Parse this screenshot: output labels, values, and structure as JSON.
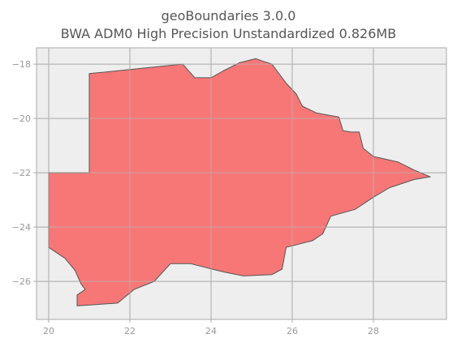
{
  "title_line1": "geoBoundaries 3.0.0",
  "title_line2": "BWA ADM0 High Precision Unstandardized 0.826MB",
  "chart_data": {
    "type": "map",
    "x_ticks": [
      "20",
      "22",
      "24",
      "26",
      "28"
    ],
    "y_ticks": [
      "−18",
      "−20",
      "−22",
      "−24",
      "−26"
    ],
    "x_values": [
      20,
      22,
      24,
      26,
      28
    ],
    "y_values": [
      -18,
      -20,
      -22,
      -24,
      -26
    ],
    "xlim": [
      19.7,
      29.8
    ],
    "ylim": [
      -27.4,
      -17.4
    ],
    "grid": true,
    "fill_color": "#f77777",
    "edge_color": "#555555",
    "background": "#eeeeee",
    "outline": [
      [
        21.0,
        -18.35
      ],
      [
        23.3,
        -18.0
      ],
      [
        23.6,
        -18.5
      ],
      [
        24.0,
        -18.5
      ],
      [
        24.3,
        -18.25
      ],
      [
        24.7,
        -17.95
      ],
      [
        25.1,
        -17.8
      ],
      [
        25.3,
        -17.9
      ],
      [
        25.5,
        -18.0
      ],
      [
        25.7,
        -18.4
      ],
      [
        25.85,
        -18.7
      ],
      [
        26.1,
        -19.1
      ],
      [
        26.25,
        -19.55
      ],
      [
        26.6,
        -19.8
      ],
      [
        27.15,
        -19.95
      ],
      [
        27.25,
        -20.45
      ],
      [
        27.45,
        -20.5
      ],
      [
        27.65,
        -20.5
      ],
      [
        27.75,
        -21.1
      ],
      [
        28.0,
        -21.4
      ],
      [
        28.6,
        -21.6
      ],
      [
        29.0,
        -21.9
      ],
      [
        29.4,
        -22.15
      ],
      [
        29.0,
        -22.25
      ],
      [
        28.4,
        -22.55
      ],
      [
        28.0,
        -22.9
      ],
      [
        27.55,
        -23.35
      ],
      [
        26.95,
        -23.6
      ],
      [
        26.75,
        -24.25
      ],
      [
        26.5,
        -24.5
      ],
      [
        25.85,
        -24.75
      ],
      [
        25.75,
        -25.55
      ],
      [
        25.5,
        -25.75
      ],
      [
        24.8,
        -25.8
      ],
      [
        24.3,
        -25.65
      ],
      [
        23.5,
        -25.35
      ],
      [
        23.0,
        -25.35
      ],
      [
        22.6,
        -26.0
      ],
      [
        22.1,
        -26.3
      ],
      [
        21.7,
        -26.8
      ],
      [
        21.2,
        -26.85
      ],
      [
        20.7,
        -26.9
      ],
      [
        20.7,
        -26.5
      ],
      [
        20.9,
        -26.3
      ],
      [
        20.8,
        -26.1
      ],
      [
        20.65,
        -25.6
      ],
      [
        20.4,
        -25.15
      ],
      [
        20.0,
        -24.75
      ],
      [
        20.0,
        -22.0
      ],
      [
        21.0,
        -22.0
      ]
    ]
  }
}
